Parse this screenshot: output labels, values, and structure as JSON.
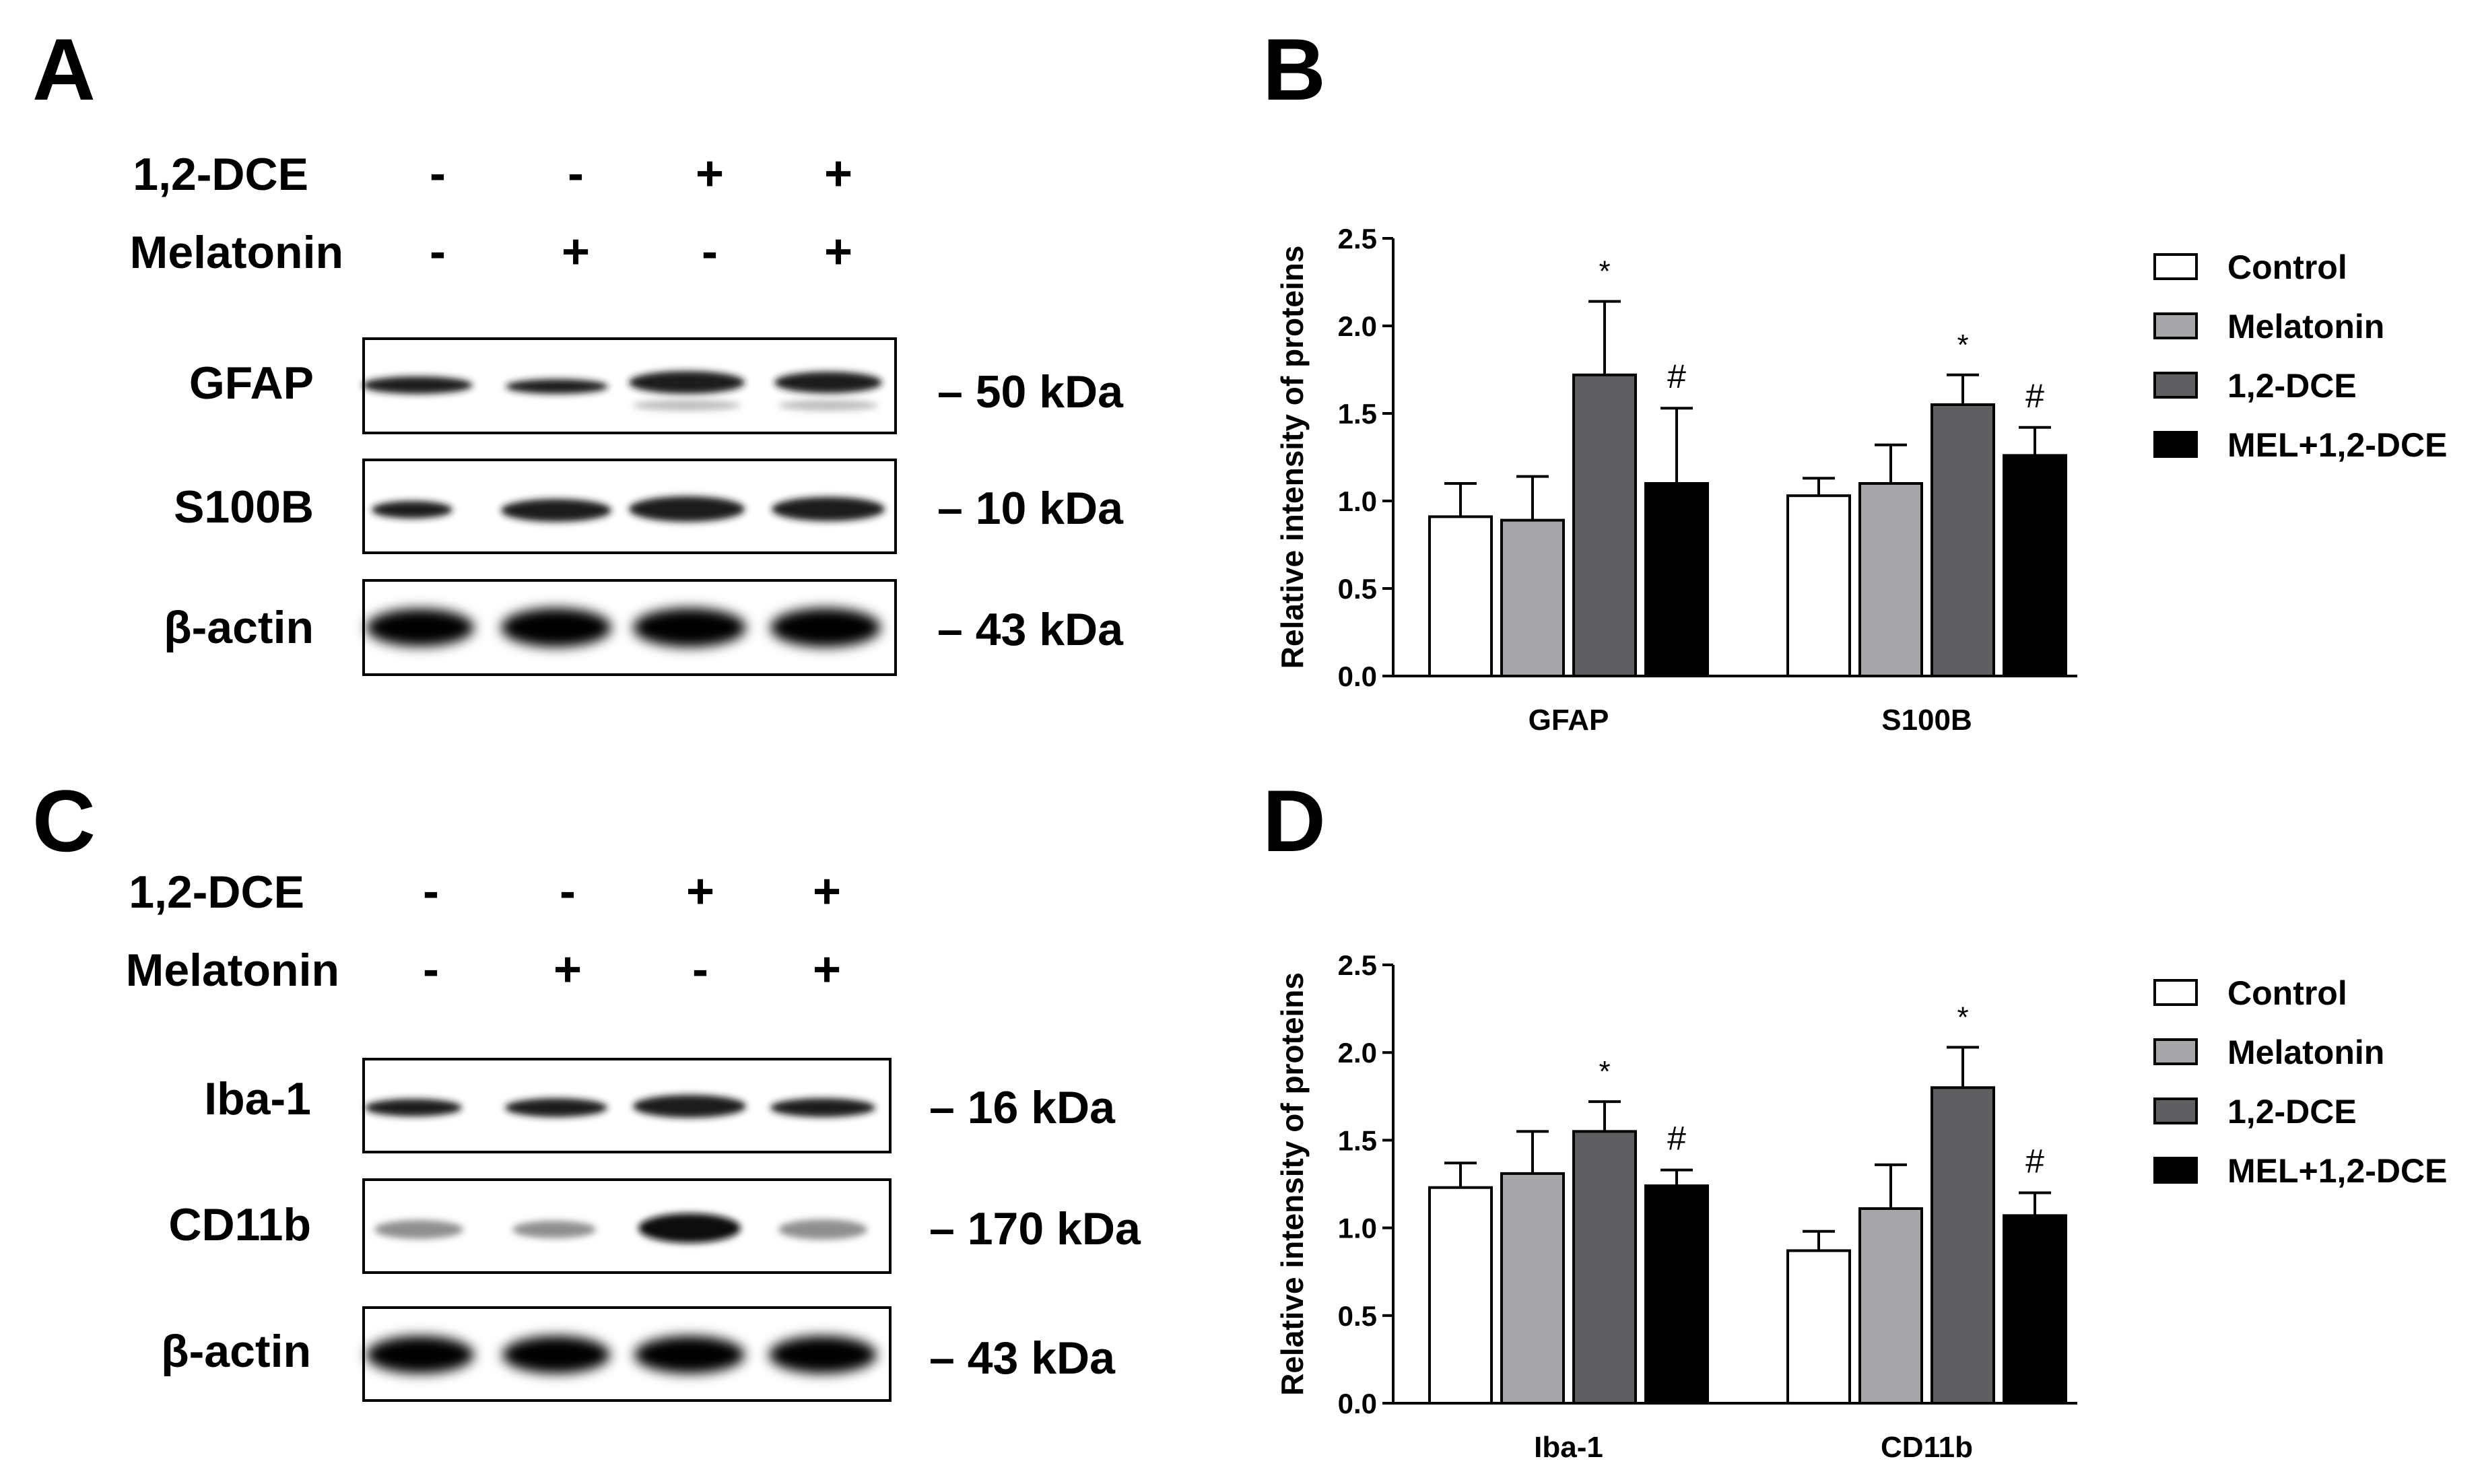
{
  "panels": {
    "A": {
      "letter": "A",
      "treatments": [
        {
          "label": "1,2-DCE",
          "signs": [
            "-",
            "-",
            "+",
            "+"
          ]
        },
        {
          "label": "Melatonin",
          "signs": [
            "-",
            "+",
            "-",
            "+"
          ]
        }
      ],
      "blots": [
        {
          "label": "GFAP",
          "kda": "– 50 kDa"
        },
        {
          "label": "S100B",
          "kda": "– 10 kDa"
        },
        {
          "label": "β-actin",
          "kda": "– 43 kDa"
        }
      ]
    },
    "C": {
      "letter": "C",
      "treatments": [
        {
          "label": "1,2-DCE",
          "signs": [
            "-",
            "-",
            "+",
            "+"
          ]
        },
        {
          "label": "Melatonin",
          "signs": [
            "-",
            "+",
            "-",
            "+"
          ]
        }
      ],
      "blots": [
        {
          "label": "Iba-1",
          "kda": "– 16 kDa"
        },
        {
          "label": "CD11b",
          "kda": "– 170 kDa"
        },
        {
          "label": "β-actin",
          "kda": "– 43 kDa"
        }
      ]
    },
    "B": {
      "letter": "B"
    },
    "D": {
      "letter": "D"
    }
  },
  "chart_data": [
    {
      "panel": "B",
      "type": "bar",
      "ylabel": "Relative intensity of proteins",
      "xlabel": "",
      "ylim": [
        0,
        2.5
      ],
      "yticks": [
        "0.0",
        "0.5",
        "1.0",
        "1.5",
        "2.0",
        "2.5"
      ],
      "categories": [
        "GFAP",
        "S100B"
      ],
      "series": [
        {
          "name": "Control",
          "color": "#ffffff",
          "values": [
            0.91,
            1.03
          ],
          "errors": [
            0.19,
            0.1
          ],
          "sig": [
            "",
            ""
          ]
        },
        {
          "name": "Melatonin",
          "color": "#a6a6a9",
          "values": [
            0.89,
            1.1
          ],
          "errors": [
            0.25,
            0.22
          ],
          "sig": [
            "",
            ""
          ]
        },
        {
          "name": "1,2-DCE",
          "color": "#5f5f62",
          "values": [
            1.72,
            1.55
          ],
          "errors": [
            0.42,
            0.17
          ],
          "sig": [
            "*",
            "*"
          ]
        },
        {
          "name": "MEL+1,2-DCE",
          "color": "#000000",
          "values": [
            1.1,
            1.26
          ],
          "errors": [
            0.43,
            0.16
          ],
          "sig": [
            "#",
            "#"
          ]
        }
      ]
    },
    {
      "panel": "D",
      "type": "bar",
      "ylabel": "Relative intensity of proteins",
      "xlabel": "",
      "ylim": [
        0,
        2.5
      ],
      "yticks": [
        "0.0",
        "0.5",
        "1.0",
        "1.5",
        "2.0",
        "2.5"
      ],
      "categories": [
        "Iba-1",
        "CD11b"
      ],
      "series": [
        {
          "name": "Control",
          "color": "#ffffff",
          "values": [
            1.23,
            0.87
          ],
          "errors": [
            0.14,
            0.11
          ],
          "sig": [
            "",
            ""
          ]
        },
        {
          "name": "Melatonin",
          "color": "#a6a6a9",
          "values": [
            1.31,
            1.11
          ],
          "errors": [
            0.24,
            0.25
          ],
          "sig": [
            "",
            ""
          ]
        },
        {
          "name": "1,2-DCE",
          "color": "#5f5f62",
          "values": [
            1.55,
            1.8
          ],
          "errors": [
            0.17,
            0.23
          ],
          "sig": [
            "*",
            "*"
          ]
        },
        {
          "name": "MEL+1,2-DCE",
          "color": "#000000",
          "values": [
            1.24,
            1.07
          ],
          "errors": [
            0.09,
            0.13
          ],
          "sig": [
            "#",
            "#"
          ]
        }
      ]
    }
  ]
}
